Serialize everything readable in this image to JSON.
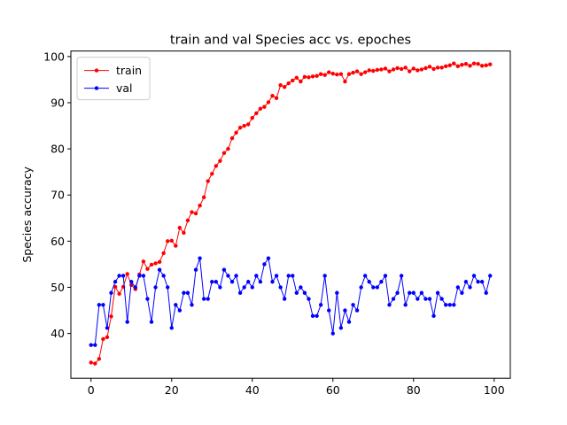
{
  "chart_data": {
    "type": "line",
    "title": "train and val Species acc vs. epoches",
    "xlabel": "",
    "ylabel": "Species accuracy",
    "xlim": [
      -5,
      104
    ],
    "ylim": [
      30.3,
      101.2
    ],
    "xticks": [
      0,
      20,
      40,
      60,
      80,
      100
    ],
    "yticks": [
      40,
      50,
      60,
      70,
      80,
      90,
      100
    ],
    "grid": false,
    "legend_position": "top-left",
    "series": [
      {
        "name": "train",
        "color": "#ff0000",
        "marker": "circle",
        "values": [
          33.7,
          33.5,
          34.5,
          38.8,
          39.2,
          43.7,
          50.1,
          48.6,
          50.1,
          52.9,
          50.5,
          49.6,
          52.8,
          55.6,
          54.0,
          54.9,
          55.2,
          55.5,
          57.4,
          60.0,
          60.1,
          59.0,
          62.9,
          61.8,
          64.5,
          66.3,
          66.0,
          67.7,
          69.5,
          73.0,
          74.6,
          76.3,
          77.4,
          79.1,
          80.0,
          82.3,
          83.5,
          84.6,
          85.0,
          85.3,
          86.7,
          87.7,
          88.7,
          89.1,
          90.1,
          91.5,
          91.0,
          93.8,
          93.4,
          94.2,
          94.8,
          95.4,
          94.6,
          95.6,
          95.5,
          95.7,
          95.8,
          96.2,
          96.0,
          96.6,
          96.3,
          96.1,
          96.2,
          94.6,
          96.2,
          96.5,
          96.8,
          96.2,
          96.6,
          97.0,
          96.9,
          97.1,
          97.2,
          97.4,
          96.8,
          97.2,
          97.5,
          97.3,
          97.6,
          96.8,
          97.4,
          97.0,
          97.2,
          97.5,
          97.8,
          97.3,
          97.6,
          97.6,
          97.9,
          98.1,
          98.5,
          97.9,
          98.2,
          98.4,
          98.0,
          98.5,
          98.4,
          98.0,
          98.1,
          98.3
        ]
      },
      {
        "name": "val",
        "color": "#0000ff",
        "marker": "circle",
        "values": [
          37.5,
          37.5,
          46.2,
          46.2,
          41.2,
          48.8,
          51.2,
          52.5,
          52.5,
          42.5,
          51.2,
          50.0,
          52.5,
          52.5,
          47.5,
          42.5,
          50.0,
          53.8,
          52.5,
          50.0,
          41.2,
          46.2,
          45.0,
          48.8,
          48.8,
          46.2,
          53.8,
          56.3,
          47.5,
          47.5,
          51.2,
          51.2,
          50.0,
          53.8,
          52.5,
          51.2,
          52.5,
          48.8,
          50.0,
          51.2,
          50.0,
          52.5,
          51.2,
          55.0,
          56.3,
          51.2,
          52.5,
          50.0,
          47.5,
          52.5,
          52.5,
          48.8,
          50.0,
          48.8,
          47.5,
          43.8,
          43.8,
          46.2,
          52.5,
          45.0,
          40.0,
          48.8,
          41.2,
          45.0,
          42.5,
          46.2,
          45.0,
          50.0,
          52.5,
          51.2,
          50.0,
          50.0,
          51.2,
          52.5,
          46.2,
          47.5,
          48.8,
          52.5,
          46.2,
          48.8,
          48.8,
          47.5,
          48.8,
          47.5,
          47.5,
          43.8,
          48.8,
          47.5,
          46.2,
          46.2,
          46.2,
          50.0,
          48.8,
          51.2,
          50.0,
          52.5,
          51.2,
          51.2,
          48.8,
          52.5
        ]
      }
    ]
  }
}
